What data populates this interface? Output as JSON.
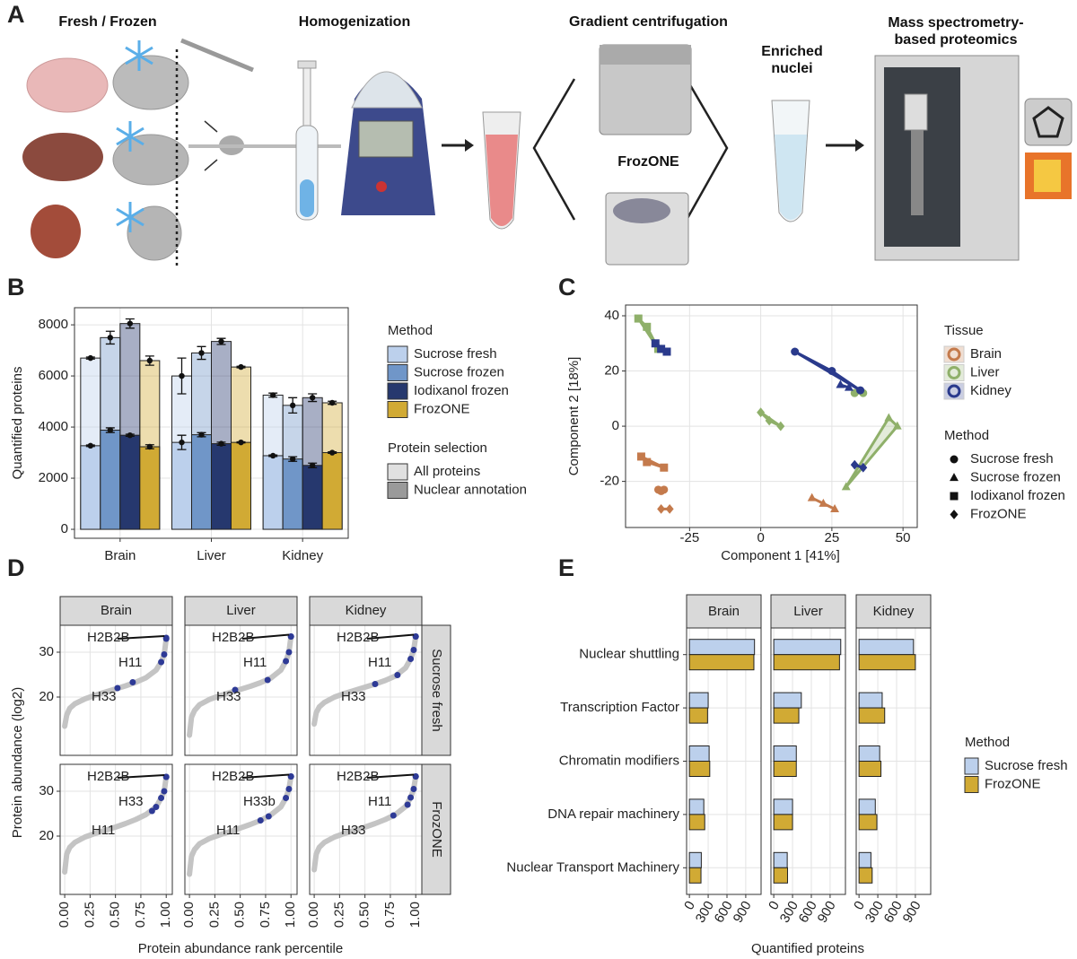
{
  "workflow": {
    "label": "A",
    "steps": [
      "Fresh / Frozen",
      "Homogenization",
      "Gradient centrifugation",
      "Enriched nuclei",
      "Mass spectrometry-based proteomics"
    ],
    "alternative": "FrozONE"
  },
  "chart_data": [
    {
      "type": "bar",
      "panel": "B",
      "categories": [
        "Brain",
        "Liver",
        "Kidney"
      ],
      "ylabel": "Quantified proteins",
      "ylim": [
        -350,
        8670
      ],
      "yticks": [
        0,
        2000,
        4000,
        6000,
        8000
      ],
      "grid": true,
      "legend_title": "Method",
      "selection_title": "Protein selection",
      "selection": [
        "All proteins",
        "Nuclear annotation"
      ],
      "series": [
        {
          "name": "Sucrose fresh",
          "color": "#bcd0ec",
          "values": [
            6700,
            6000,
            5250
          ],
          "errors": [
            40,
            700,
            80
          ],
          "nuclear_values": [
            3270,
            3400,
            2880
          ],
          "nuclear_errors": [
            30,
            280,
            30
          ]
        },
        {
          "name": "Sucrose frozen",
          "color": "#7096c8",
          "values": [
            7500,
            6900,
            4850
          ],
          "errors": [
            250,
            250,
            300
          ],
          "nuclear_values": [
            3880,
            3700,
            2750
          ],
          "nuclear_errors": [
            90,
            80,
            90
          ]
        },
        {
          "name": "Iodixanol frozen",
          "color": "#26386e",
          "values": [
            8050,
            7350,
            5150
          ],
          "errors": [
            180,
            120,
            150
          ],
          "nuclear_values": [
            3680,
            3350,
            2500
          ],
          "nuclear_errors": [
            40,
            60,
            90
          ]
        },
        {
          "name": "FrozONE",
          "color": "#d1aa34",
          "values": [
            6600,
            6350,
            4950
          ],
          "errors": [
            180,
            30,
            60
          ],
          "nuclear_values": [
            3230,
            3400,
            3000
          ],
          "nuclear_errors": [
            80,
            20,
            30
          ]
        }
      ]
    },
    {
      "type": "scatter",
      "panel": "C",
      "xlabel": "Component 1 [41%]",
      "ylabel": "Component 2 [18%]",
      "xlim": [
        -47.5,
        55
      ],
      "ylim": [
        -36.7,
        43.9
      ],
      "xticks": [
        -25,
        0,
        25,
        50
      ],
      "yticks": [
        -20,
        0,
        20,
        40
      ],
      "grid": true,
      "legend_title": "Tissue",
      "method_title": "Method",
      "methods": [
        {
          "name": "Sucrose fresh",
          "shape": "circle"
        },
        {
          "name": "Sucrose frozen",
          "shape": "triangle"
        },
        {
          "name": "Iodixanol frozen",
          "shape": "square"
        },
        {
          "name": "FrozONE",
          "shape": "diamond"
        }
      ],
      "series": [
        {
          "name": "Brain",
          "color": "#c47a4c",
          "groups": [
            {
              "x": [
                -36,
                -35,
                -34
              ],
              "y": [
                -23,
                -23.5,
                -23
              ]
            },
            {
              "x": [
                18,
                22,
                26
              ],
              "y": [
                -26,
                -28,
                -30
              ]
            },
            {
              "x": [
                -42,
                -40,
                -34
              ],
              "y": [
                -11,
                -13,
                -15
              ]
            },
            {
              "x": [
                -35,
                -32
              ],
              "y": [
                -30,
                -30
              ]
            }
          ]
        },
        {
          "name": "Liver",
          "color": "#8fb06a",
          "groups": [
            {
              "x": [
                33,
                36
              ],
              "y": [
                12,
                12
              ]
            },
            {
              "x": [
                45,
                48,
                30
              ],
              "y": [
                3,
                0,
                -22
              ]
            },
            {
              "x": [
                -43,
                -40,
                -36
              ],
              "y": [
                39,
                36,
                28
              ]
            },
            {
              "x": [
                0,
                3,
                7
              ],
              "y": [
                5,
                2,
                0
              ]
            }
          ]
        },
        {
          "name": "Kidney",
          "color": "#2a3a8c",
          "groups": [
            {
              "x": [
                12,
                25,
                35
              ],
              "y": [
                27,
                20,
                13
              ]
            },
            {
              "x": [
                28,
                31
              ],
              "y": [
                15,
                14
              ]
            },
            {
              "x": [
                -37,
                -35,
                -33
              ],
              "y": [
                30,
                28,
                27
              ]
            },
            {
              "x": [
                33,
                36
              ],
              "y": [
                -14,
                -15
              ]
            }
          ]
        }
      ]
    },
    {
      "type": "line",
      "panel": "D",
      "xlabel": "Protein abundance rank percentile",
      "ylabel": "Protein abundance (log2)",
      "columns": [
        "Brain",
        "Liver",
        "Kidney"
      ],
      "rows": [
        "Sucrose fresh",
        "FrozONE"
      ],
      "xlim": [
        -0.045,
        1.06
      ],
      "ylim": [
        7,
        36
      ],
      "xticks": [
        {
          "value": 0,
          "label": "0.00"
        },
        {
          "value": 0.25,
          "label": "0.25"
        },
        {
          "value": 0.5,
          "label": "0.50"
        },
        {
          "value": 0.75,
          "label": "0.75"
        },
        {
          "value": 1,
          "label": "1.00"
        }
      ],
      "yticks": [
        20,
        30
      ],
      "grid": true,
      "color": "#c4c4c4",
      "highlight_color": "#2e3a96",
      "panels": [
        {
          "x": [
            0,
            0.02,
            0.05,
            0.1,
            0.2,
            0.3,
            0.4,
            0.5,
            0.6,
            0.7,
            0.8,
            0.9,
            0.95,
            0.98,
            1
          ],
          "y": [
            13.5,
            16,
            17.5,
            18.5,
            19.6,
            20.4,
            21.1,
            21.8,
            22.5,
            23.3,
            24.3,
            26,
            27.8,
            29.5,
            33
          ],
          "annotations": [
            {
              "label": "H2B2B",
              "x": 1,
              "y": 33.2
            },
            {
              "label": "H11",
              "x": 0.67,
              "y": 23.3
            },
            {
              "label": "H33",
              "x": 0.52,
              "y": 22
            }
          ]
        },
        {
          "x": [
            0,
            0.02,
            0.05,
            0.1,
            0.2,
            0.3,
            0.4,
            0.5,
            0.6,
            0.7,
            0.8,
            0.9,
            0.95,
            0.98,
            1
          ],
          "y": [
            11.5,
            15.5,
            17,
            18.3,
            19.5,
            20.3,
            21,
            21.7,
            22.4,
            23.2,
            24.2,
            26,
            28,
            30,
            33.5
          ],
          "annotations": [
            {
              "label": "H2B2B",
              "x": 1,
              "y": 33.5
            },
            {
              "label": "H11",
              "x": 0.77,
              "y": 23.8
            },
            {
              "label": "H33",
              "x": 0.45,
              "y": 21.6
            }
          ]
        },
        {
          "x": [
            0,
            0.02,
            0.05,
            0.1,
            0.2,
            0.3,
            0.4,
            0.5,
            0.6,
            0.7,
            0.8,
            0.9,
            0.95,
            0.98,
            1
          ],
          "y": [
            14,
            16.5,
            17.8,
            18.8,
            20,
            20.8,
            21.5,
            22.2,
            22.9,
            23.7,
            24.7,
            26.5,
            28.5,
            30.5,
            33.5
          ],
          "annotations": [
            {
              "label": "H2B2B",
              "x": 1,
              "y": 33.5
            },
            {
              "label": "H11",
              "x": 0.82,
              "y": 24.9
            },
            {
              "label": "H33",
              "x": 0.6,
              "y": 22.9
            }
          ]
        },
        {
          "x": [
            0,
            0.02,
            0.05,
            0.1,
            0.2,
            0.3,
            0.4,
            0.5,
            0.6,
            0.7,
            0.8,
            0.9,
            0.95,
            0.98,
            1
          ],
          "y": [
            12,
            16,
            17.5,
            18.6,
            19.8,
            20.6,
            21.3,
            22,
            22.8,
            23.7,
            24.8,
            26.5,
            28.5,
            30,
            33.2
          ],
          "annotations": [
            {
              "label": "H2B2B",
              "x": 1,
              "y": 33.2
            },
            {
              "label": "H33",
              "x": 0.86,
              "y": 25.6
            },
            {
              "label": "H11",
              "x": 0.9,
              "y": 26.5
            }
          ]
        },
        {
          "x": [
            0,
            0.02,
            0.05,
            0.1,
            0.2,
            0.3,
            0.4,
            0.5,
            0.6,
            0.7,
            0.8,
            0.9,
            0.95,
            0.98,
            1
          ],
          "y": [
            11.5,
            15.5,
            17,
            18.3,
            19.5,
            20.3,
            21,
            21.8,
            22.6,
            23.5,
            24.7,
            26.5,
            28.5,
            30.5,
            33.3
          ],
          "annotations": [
            {
              "label": "H2B2B",
              "x": 1,
              "y": 33.3
            },
            {
              "label": "H33b",
              "x": 0.78,
              "y": 24.4
            },
            {
              "label": "H11",
              "x": 0.7,
              "y": 23.5
            }
          ]
        },
        {
          "x": [
            0,
            0.02,
            0.05,
            0.1,
            0.2,
            0.3,
            0.4,
            0.5,
            0.6,
            0.7,
            0.8,
            0.9,
            0.95,
            0.98,
            1
          ],
          "y": [
            12.5,
            16,
            17.5,
            18.6,
            19.8,
            20.6,
            21.3,
            22,
            22.8,
            23.7,
            24.8,
            26.6,
            28.6,
            30.5,
            33.3
          ],
          "annotations": [
            {
              "label": "H2B2B",
              "x": 1,
              "y": 33.3
            },
            {
              "label": "H11",
              "x": 0.92,
              "y": 27
            },
            {
              "label": "H33",
              "x": 0.78,
              "y": 24.6
            }
          ]
        }
      ]
    },
    {
      "type": "bar",
      "orientation": "horizontal",
      "panel": "E",
      "xlabel": "Quantified proteins",
      "columns": [
        "Brain",
        "Liver",
        "Kidney"
      ],
      "categories": [
        "Nuclear shuttling",
        "Transcription Factor",
        "Chromatin modifiers",
        "DNA repair machinery",
        "Nuclear Transport Machinery"
      ],
      "xlim": [
        -45,
        1145
      ],
      "xticks": [
        0,
        300,
        600,
        900
      ],
      "grid": true,
      "legend_title": "Method",
      "series": [
        {
          "name": "Sucrose fresh",
          "color": "#bcd0ec",
          "values": [
            [
              1040,
              300,
              315,
              230,
              190
            ],
            [
              1070,
              440,
              360,
              300,
              215
            ],
            [
              870,
              370,
              330,
              260,
              190
            ]
          ]
        },
        {
          "name": "FrozONE",
          "color": "#d1aa34",
          "values": [
            [
              1030,
              290,
              325,
              245,
              185
            ],
            [
              1050,
              400,
              360,
              300,
              220
            ],
            [
              900,
              410,
              350,
              285,
              210
            ]
          ]
        }
      ]
    }
  ]
}
